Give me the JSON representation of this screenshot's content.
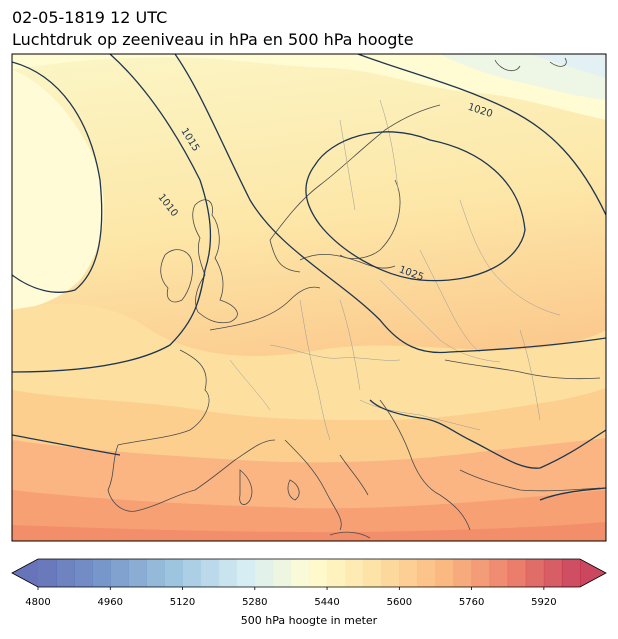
{
  "header": {
    "datetime": "02-05-1819 12 UTC",
    "title": "Luchtdruk op zeeniveau in hPa en 500 hPa hoogte"
  },
  "map": {
    "region": "Europe",
    "fill_variable": "500 hPa geopotential height (m)",
    "contour_variable": "Mean sea level pressure (hPa)",
    "contour_labels": [
      "1010",
      "1015",
      "1020",
      "1025"
    ],
    "contour_color": "#1f3650",
    "coastline_color": "#4a4a4a"
  },
  "colorbar": {
    "label": "500 hPa hoogte in meter",
    "ticks": [
      "4800",
      "4960",
      "5120",
      "5280",
      "5440",
      "5600",
      "5760",
      "5920"
    ],
    "min": 4800,
    "max": 6000,
    "step": 40,
    "extend": "both",
    "colormap": "RdYlBu_r"
  }
}
